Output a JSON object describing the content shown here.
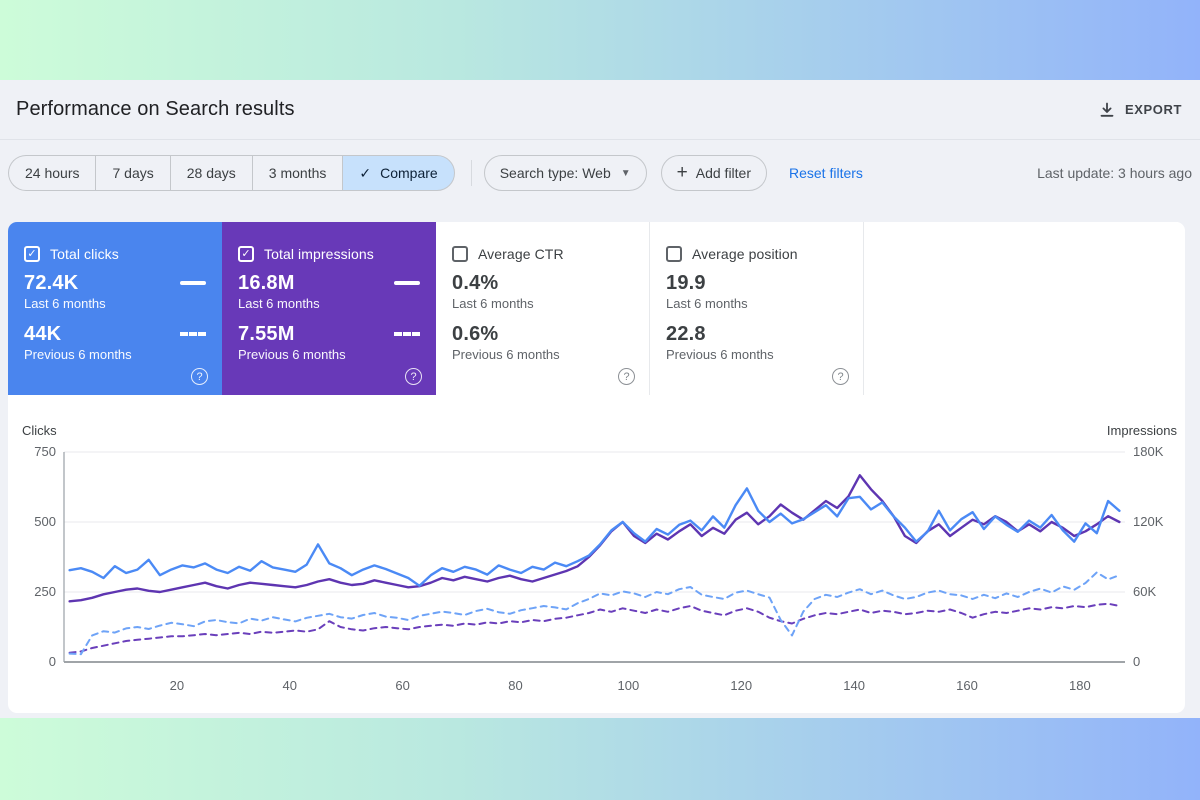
{
  "header": {
    "title": "Performance on Search results",
    "export_label": "EXPORT"
  },
  "toolbar": {
    "ranges": [
      "24 hours",
      "7 days",
      "28 days",
      "3 months"
    ],
    "compare_label": "Compare",
    "search_type_label": "Search type: Web",
    "add_filter_label": "Add filter",
    "reset_label": "Reset filters",
    "last_update": "Last update: 3 hours ago"
  },
  "icons": {
    "check": "✓",
    "caret": "▼",
    "plus": "+",
    "help": "?"
  },
  "theme": {
    "clicks_blue": "#4a85ee",
    "impressions_purple": "#6839b8",
    "selected_chip_bg": "#c7e1fc",
    "link_blue": "#1a73e8",
    "page_bg": "#eff1f6",
    "band_gradient_left": "#cdfcd9",
    "band_gradient_right": "#92b3fa"
  },
  "cards": [
    {
      "label": "Total clicks",
      "checked": true,
      "color": "#4a85ee",
      "current": {
        "value": "72.4K",
        "caption": "Last 6 months"
      },
      "previous": {
        "value": "44K",
        "caption": "Previous 6 months"
      }
    },
    {
      "label": "Total impressions",
      "checked": true,
      "color": "#6839b8",
      "current": {
        "value": "16.8M",
        "caption": "Last 6 months"
      },
      "previous": {
        "value": "7.55M",
        "caption": "Previous 6 months"
      }
    },
    {
      "label": "Average CTR",
      "checked": false,
      "current": {
        "value": "0.4%",
        "caption": "Last 6 months"
      },
      "previous": {
        "value": "0.6%",
        "caption": "Previous 6 months"
      }
    },
    {
      "label": "Average position",
      "checked": false,
      "current": {
        "value": "19.9",
        "caption": "Last 6 months"
      },
      "previous": {
        "value": "22.8",
        "caption": "Previous 6 months"
      }
    }
  ],
  "chart_data": {
    "type": "line",
    "x": {
      "min": 0,
      "max": 188,
      "ticks": [
        20,
        40,
        60,
        80,
        100,
        120,
        140,
        160,
        180
      ]
    },
    "x_start": 1,
    "x_step": 2,
    "y_left": {
      "label": "Clicks",
      "max": 750,
      "ticks": [
        0,
        250,
        500,
        750
      ],
      "tick_labels": [
        "0",
        "250",
        "500",
        "750"
      ]
    },
    "y_right": {
      "label": "Impressions",
      "max": 180,
      "ticks": [
        0,
        60,
        120,
        180
      ],
      "tick_labels": [
        "0",
        "60K",
        "120K",
        "180K"
      ],
      "unit": "thousand impressions"
    },
    "grid": true,
    "legend": "none (series keyed to metric tiles)",
    "series": [
      {
        "name": "Clicks — Last 6 months",
        "axis": "left",
        "color": "#4b8af5",
        "dash": "solid",
        "values": [
          328,
          335,
          322,
          300,
          342,
          318,
          330,
          365,
          310,
          330,
          345,
          338,
          352,
          330,
          318,
          340,
          326,
          360,
          338,
          330,
          322,
          348,
          420,
          352,
          335,
          310,
          330,
          345,
          332,
          316,
          300,
          272,
          310,
          335,
          322,
          340,
          330,
          312,
          345,
          330,
          318,
          340,
          330,
          355,
          342,
          360,
          380,
          420,
          470,
          500,
          460,
          430,
          475,
          455,
          490,
          505,
          470,
          520,
          480,
          560,
          620,
          540,
          500,
          530,
          495,
          510,
          535,
          560,
          520,
          585,
          590,
          545,
          570,
          520,
          480,
          430,
          465,
          540,
          470,
          510,
          535,
          475,
          520,
          490,
          465,
          505,
          480,
          525,
          470,
          430,
          495,
          460,
          575,
          540
        ]
      },
      {
        "name": "Impressions — Last 6 months",
        "axis": "right",
        "color": "#5e35b1",
        "dash": "solid",
        "values": [
          52,
          53,
          55,
          58,
          60,
          62,
          63,
          61,
          60,
          62,
          64,
          66,
          68,
          65,
          63,
          66,
          68,
          67,
          66,
          65,
          64,
          66,
          69,
          71,
          68,
          66,
          67,
          70,
          68,
          66,
          64,
          65,
          68,
          72,
          70,
          73,
          71,
          69,
          72,
          74,
          71,
          69,
          72,
          75,
          78,
          82,
          90,
          100,
          112,
          120,
          108,
          102,
          110,
          105,
          112,
          118,
          108,
          115,
          110,
          122,
          128,
          118,
          125,
          135,
          128,
          122,
          130,
          138,
          132,
          142,
          160,
          148,
          138,
          125,
          108,
          102,
          112,
          118,
          108,
          115,
          122,
          118,
          125,
          120,
          112,
          118,
          112,
          120,
          115,
          108,
          112,
          118,
          125,
          120
        ]
      },
      {
        "name": "Clicks — Previous 6 months",
        "axis": "left",
        "color": "#6ea3f7",
        "dash": "dashed",
        "values": [
          30,
          28,
          95,
          110,
          105,
          120,
          125,
          118,
          130,
          140,
          135,
          128,
          145,
          150,
          142,
          138,
          155,
          148,
          160,
          152,
          145,
          158,
          165,
          172,
          160,
          155,
          168,
          175,
          162,
          158,
          150,
          165,
          172,
          180,
          175,
          168,
          182,
          190,
          178,
          172,
          185,
          192,
          200,
          195,
          188,
          210,
          225,
          245,
          238,
          252,
          245,
          232,
          250,
          242,
          260,
          268,
          240,
          232,
          225,
          248,
          255,
          242,
          230,
          150,
          95,
          180,
          225,
          240,
          232,
          248,
          260,
          242,
          255,
          238,
          225,
          232,
          248,
          255,
          242,
          238,
          225,
          240,
          228,
          245,
          232,
          250,
          262,
          248,
          270,
          258,
          282,
          320,
          295,
          310
        ]
      },
      {
        "name": "Impressions — Previous 6 months",
        "axis": "right",
        "color": "#6a3fbb",
        "dash": "dashed",
        "values": [
          8,
          9,
          12,
          14,
          16,
          18,
          19,
          20,
          21,
          22,
          22,
          23,
          24,
          23,
          24,
          25,
          24,
          26,
          25,
          26,
          27,
          26,
          28,
          35,
          30,
          28,
          27,
          29,
          30,
          29,
          28,
          30,
          31,
          32,
          31,
          33,
          32,
          34,
          33,
          35,
          34,
          36,
          35,
          37,
          38,
          40,
          42,
          45,
          43,
          46,
          44,
          42,
          45,
          43,
          46,
          48,
          44,
          42,
          40,
          44,
          46,
          43,
          38,
          35,
          33,
          37,
          40,
          42,
          41,
          43,
          45,
          42,
          44,
          43,
          41,
          42,
          44,
          43,
          45,
          42,
          38,
          41,
          43,
          42,
          44,
          46,
          45,
          47,
          46,
          48,
          47,
          49,
          50,
          48
        ]
      }
    ]
  }
}
